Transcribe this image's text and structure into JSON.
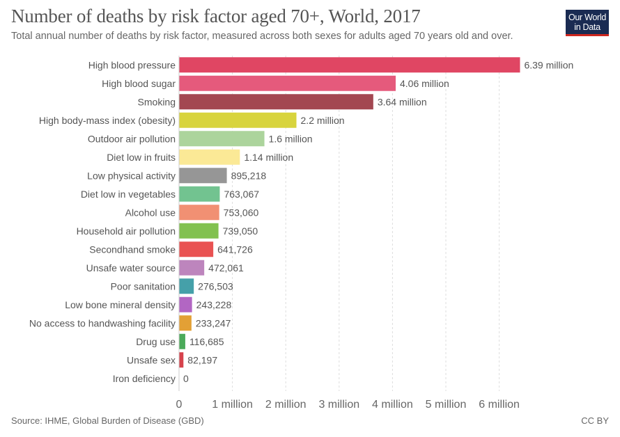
{
  "header": {
    "title": "Number of deaths by risk factor aged 70+, World, 2017",
    "subtitle": "Total annual number of deaths by risk factor, measured across both sexes for adults aged 70 years old and over.",
    "logo_line1": "Our World",
    "logo_line2": "in Data"
  },
  "footer": {
    "source": "Source: IHME, Global Burden of Disease (GBD)",
    "license": "CC BY"
  },
  "chart_data": {
    "type": "bar",
    "orientation": "horizontal",
    "title": "Number of deaths by risk factor aged 70+, World, 2017",
    "subtitle": "Total annual number of deaths by risk factor, measured across both sexes for adults aged 70 years old and over.",
    "xlabel": "",
    "ylabel": "",
    "xlim": [
      0,
      6500000
    ],
    "grid": "vertical-dashed",
    "x_ticks": [
      0,
      1000000,
      2000000,
      3000000,
      4000000,
      5000000,
      6000000
    ],
    "x_tick_labels": [
      "0",
      "1 million",
      "2 million",
      "3 million",
      "4 million",
      "5 million",
      "6 million"
    ],
    "categories": [
      "High blood pressure",
      "High blood sugar",
      "Smoking",
      "High body-mass index (obesity)",
      "Outdoor air pollution",
      "Diet low in fruits",
      "Low physical activity",
      "Diet low in vegetables",
      "Alcohol use",
      "Household air pollution",
      "Secondhand smoke",
      "Unsafe water source",
      "Poor sanitation",
      "Low bone mineral density",
      "No access to handwashing facility",
      "Drug use",
      "Unsafe sex",
      "Iron deficiency"
    ],
    "values": [
      6390000,
      4060000,
      3640000,
      2200000,
      1600000,
      1140000,
      895218,
      763067,
      753060,
      739050,
      641726,
      472061,
      276503,
      243228,
      233247,
      116685,
      82197,
      0
    ],
    "value_labels": [
      "6.39 million",
      "4.06 million",
      "3.64 million",
      "2.2 million",
      "1.6 million",
      "1.14 million",
      "895,218",
      "763,067",
      "753,060",
      "739,050",
      "641,726",
      "472,061",
      "276,503",
      "243,228",
      "233,247",
      "116,685",
      "82,197",
      "0"
    ],
    "colors": [
      "#e04663",
      "#e55a7c",
      "#a34751",
      "#d8d43d",
      "#acd49c",
      "#fbe996",
      "#969696",
      "#72c390",
      "#f19073",
      "#82c150",
      "#e95252",
      "#bd85bd",
      "#45a0a9",
      "#b266c3",
      "#e3a035",
      "#4baa5a",
      "#d6424c",
      "#bbbbbb"
    ]
  }
}
